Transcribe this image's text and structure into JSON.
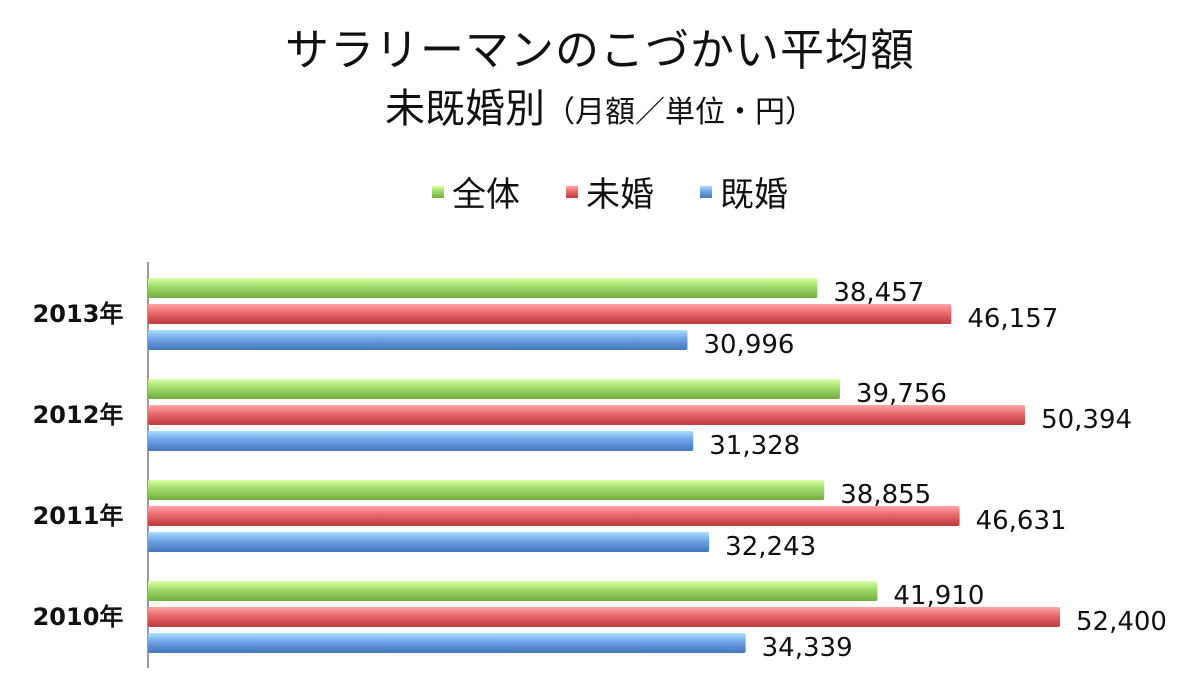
{
  "chart_data": {
    "type": "bar",
    "orientation": "horizontal",
    "title": "サラリーマンのこづかい平均額",
    "subtitle_main": "未既婚別",
    "subtitle_note": "（月額／単位・円）",
    "categories": [
      "2013年",
      "2012年",
      "2011年",
      "2010年"
    ],
    "series": [
      {
        "name": "全体",
        "color": "#9FDB6A",
        "values": [
          38457,
          39756,
          38855,
          41910
        ],
        "labels": [
          "38,457",
          "39,756",
          "38,855",
          "41,910"
        ]
      },
      {
        "name": "未婚",
        "color": "#E9696B",
        "values": [
          46157,
          50394,
          46631,
          52400
        ],
        "labels": [
          "46,157",
          "50,394",
          "46,631",
          "52,400"
        ]
      },
      {
        "name": "既婚",
        "color": "#6FA3E6",
        "values": [
          30996,
          31328,
          32243,
          34339
        ],
        "labels": [
          "30,996",
          "31,328",
          "32,243",
          "34,339"
        ]
      }
    ],
    "xlim": [
      0,
      60000
    ],
    "legend_position": "top",
    "grid": false
  }
}
